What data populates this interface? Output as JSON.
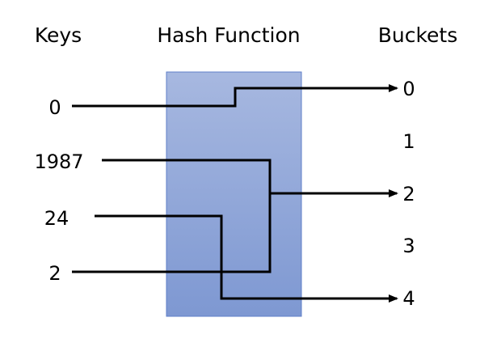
{
  "headers": {
    "keys": "Keys",
    "hash_function": "Hash Function",
    "buckets": "Buckets"
  },
  "keys": [
    "0",
    "1987",
    "24",
    "2"
  ],
  "buckets": [
    "0",
    "1",
    "2",
    "3",
    "4"
  ],
  "mappings": [
    {
      "key": "0",
      "bucket": "0"
    },
    {
      "key": "1987",
      "bucket": "2"
    },
    {
      "key": "24",
      "bucket": "4"
    },
    {
      "key": "2",
      "bucket": "2"
    }
  ],
  "colors": {
    "hash_box_top": "#a7b8e0",
    "hash_box_bottom": "#7e98d2",
    "hash_box_border": "#5f7fc8",
    "line": "#000000",
    "text": "#000000"
  }
}
